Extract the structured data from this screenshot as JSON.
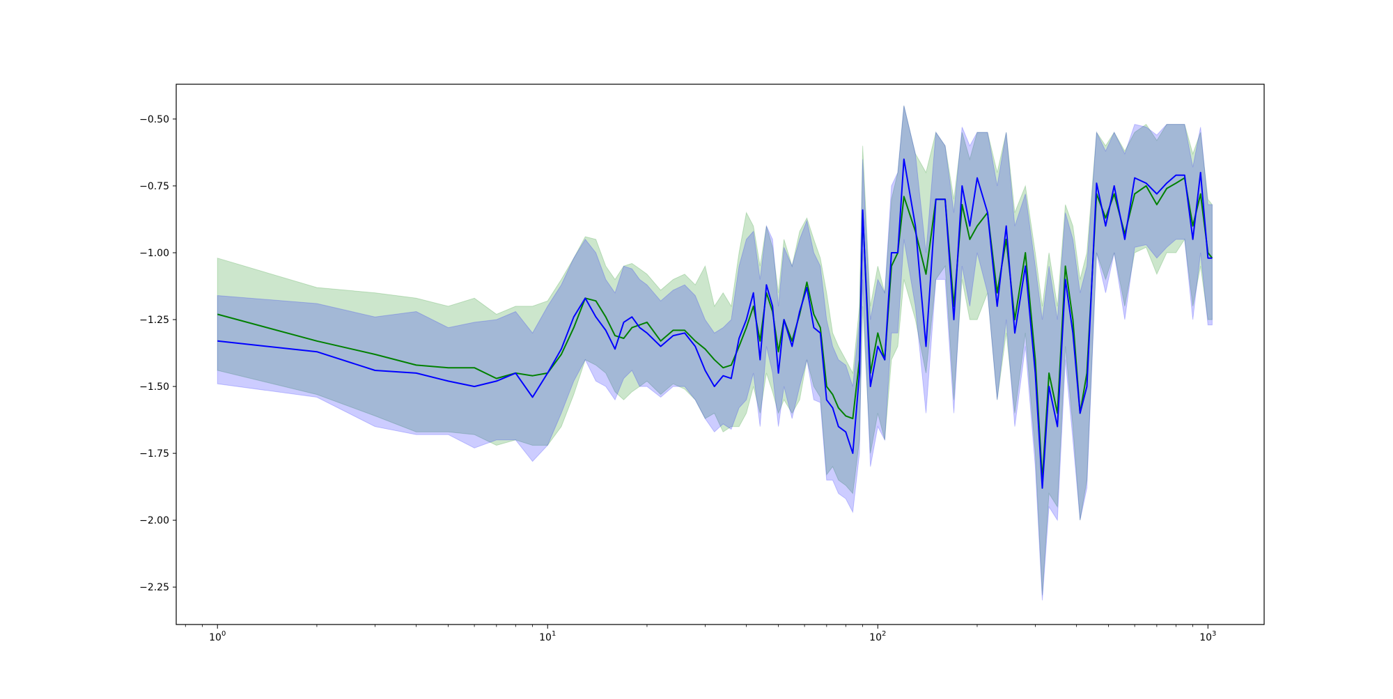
{
  "chart_data": {
    "type": "line",
    "title": "",
    "xlabel": "",
    "ylabel": "",
    "xscale": "log",
    "xlim": [
      0.75,
      1480
    ],
    "ylim": [
      -2.39,
      -0.37
    ],
    "grid": false,
    "legend": "none",
    "x_ticks": [
      {
        "value": 1,
        "base": "10",
        "exp": "0"
      },
      {
        "value": 10,
        "base": "10",
        "exp": "1"
      },
      {
        "value": 100,
        "base": "10",
        "exp": "2"
      },
      {
        "value": 1000,
        "base": "10",
        "exp": "3"
      }
    ],
    "y_ticks": [
      {
        "value": -0.5,
        "label": "−0.50"
      },
      {
        "value": -0.75,
        "label": "−0.75"
      },
      {
        "value": -1.0,
        "label": "−1.00"
      },
      {
        "value": -1.25,
        "label": "−1.25"
      },
      {
        "value": -1.5,
        "label": "−1.50"
      },
      {
        "value": -1.75,
        "label": "−1.75"
      },
      {
        "value": -2.0,
        "label": "−2.00"
      },
      {
        "value": -2.25,
        "label": "−2.25"
      }
    ],
    "series": [
      {
        "color": "#008000",
        "band_color": "#008000",
        "band_opacity": 0.2,
        "x": [
          1,
          2,
          3,
          4,
          5,
          6,
          7,
          8,
          9,
          10,
          11,
          12,
          13,
          14,
          15,
          16,
          17,
          18,
          19,
          20,
          22,
          24,
          26,
          28,
          30,
          32,
          34,
          36,
          38,
          40,
          42,
          44,
          46,
          48,
          50,
          52,
          55,
          58,
          61,
          64,
          67,
          70,
          73,
          76,
          80,
          84,
          88,
          90,
          95,
          100,
          105,
          110,
          115,
          120,
          130,
          140,
          150,
          160,
          170,
          180,
          190,
          200,
          215,
          230,
          245,
          260,
          280,
          300,
          315,
          330,
          350,
          370,
          390,
          410,
          430,
          460,
          490,
          520,
          560,
          600,
          650,
          700,
          750,
          800,
          850,
          900,
          950,
          1000,
          1030
        ],
        "y": [
          -1.23,
          -1.33,
          -1.38,
          -1.42,
          -1.43,
          -1.43,
          -1.47,
          -1.45,
          -1.46,
          -1.45,
          -1.38,
          -1.28,
          -1.17,
          -1.18,
          -1.24,
          -1.31,
          -1.32,
          -1.28,
          -1.27,
          -1.26,
          -1.33,
          -1.29,
          -1.29,
          -1.33,
          -1.36,
          -1.4,
          -1.43,
          -1.42,
          -1.35,
          -1.28,
          -1.2,
          -1.33,
          -1.15,
          -1.22,
          -1.37,
          -1.25,
          -1.33,
          -1.23,
          -1.11,
          -1.23,
          -1.28,
          -1.5,
          -1.53,
          -1.58,
          -1.61,
          -1.62,
          -1.4,
          -0.85,
          -1.45,
          -1.3,
          -1.4,
          -1.05,
          -1.0,
          -0.79,
          -0.92,
          -1.08,
          -0.8,
          -0.8,
          -1.2,
          -0.82,
          -0.95,
          -0.9,
          -0.85,
          -1.15,
          -0.95,
          -1.25,
          -1.0,
          -1.4,
          -1.85,
          -1.45,
          -1.6,
          -1.05,
          -1.25,
          -1.6,
          -1.45,
          -0.78,
          -0.87,
          -0.78,
          -0.93,
          -0.78,
          -0.75,
          -0.82,
          -0.76,
          -0.74,
          -0.72,
          -0.9,
          -0.78,
          -1.0,
          -1.02
        ],
        "upper": [
          -1.02,
          -1.13,
          -1.15,
          -1.17,
          -1.2,
          -1.17,
          -1.23,
          -1.2,
          -1.2,
          -1.18,
          -1.1,
          -1.02,
          -0.94,
          -0.95,
          -1.05,
          -1.1,
          -1.05,
          -1.04,
          -1.06,
          -1.08,
          -1.14,
          -1.1,
          -1.08,
          -1.12,
          -1.05,
          -1.2,
          -1.15,
          -1.2,
          -1.0,
          -0.85,
          -0.9,
          -1.05,
          -0.9,
          -0.98,
          -1.15,
          -0.95,
          -1.05,
          -0.92,
          -0.87,
          -0.95,
          -1.02,
          -1.15,
          -1.3,
          -1.35,
          -1.4,
          -1.45,
          -1.2,
          -0.6,
          -1.2,
          -1.05,
          -1.15,
          -0.8,
          -0.7,
          -0.45,
          -0.63,
          -0.7,
          -0.55,
          -0.6,
          -0.8,
          -0.55,
          -0.65,
          -0.55,
          -0.55,
          -0.7,
          -0.55,
          -0.85,
          -0.75,
          -1.0,
          -1.2,
          -1.0,
          -1.2,
          -0.82,
          -0.9,
          -1.1,
          -1.0,
          -0.55,
          -0.6,
          -0.55,
          -0.62,
          -0.55,
          -0.52,
          -0.58,
          -0.52,
          -0.52,
          -0.52,
          -0.63,
          -0.55,
          -0.8,
          -0.82
        ],
        "lower": [
          -1.44,
          -1.53,
          -1.61,
          -1.67,
          -1.67,
          -1.68,
          -1.72,
          -1.7,
          -1.72,
          -1.72,
          -1.65,
          -1.53,
          -1.4,
          -1.42,
          -1.45,
          -1.52,
          -1.55,
          -1.52,
          -1.5,
          -1.48,
          -1.53,
          -1.49,
          -1.51,
          -1.55,
          -1.62,
          -1.6,
          -1.67,
          -1.65,
          -1.65,
          -1.6,
          -1.5,
          -1.6,
          -1.45,
          -1.52,
          -1.6,
          -1.55,
          -1.6,
          -1.55,
          -1.4,
          -1.5,
          -1.54,
          -1.83,
          -1.8,
          -1.85,
          -1.87,
          -1.9,
          -1.7,
          -1.2,
          -1.75,
          -1.6,
          -1.7,
          -1.4,
          -1.35,
          -1.1,
          -1.25,
          -1.45,
          -1.1,
          -1.05,
          -1.55,
          -1.1,
          -1.25,
          -1.25,
          -1.15,
          -1.55,
          -1.3,
          -1.6,
          -1.3,
          -1.75,
          -2.28,
          -1.9,
          -1.95,
          -1.35,
          -1.65,
          -2.0,
          -1.85,
          -1.0,
          -1.1,
          -1.0,
          -1.2,
          -1.0,
          -0.98,
          -1.08,
          -1.0,
          -1.0,
          -0.95,
          -1.2,
          -1.05,
          -1.25,
          -1.25
        ]
      },
      {
        "color": "#0000ff",
        "band_color": "#0000ff",
        "band_opacity": 0.2,
        "x": [
          1,
          2,
          3,
          4,
          5,
          6,
          7,
          8,
          9,
          10,
          11,
          12,
          13,
          14,
          15,
          16,
          17,
          18,
          19,
          20,
          22,
          24,
          26,
          28,
          30,
          32,
          34,
          36,
          38,
          40,
          42,
          44,
          46,
          48,
          50,
          52,
          55,
          58,
          61,
          64,
          67,
          70,
          73,
          76,
          80,
          84,
          88,
          90,
          95,
          100,
          105,
          110,
          115,
          120,
          130,
          140,
          150,
          160,
          170,
          180,
          190,
          200,
          215,
          230,
          245,
          260,
          280,
          300,
          315,
          330,
          350,
          370,
          390,
          410,
          430,
          460,
          490,
          520,
          560,
          600,
          650,
          700,
          750,
          800,
          850,
          900,
          950,
          1000,
          1030
        ],
        "y": [
          -1.33,
          -1.37,
          -1.44,
          -1.45,
          -1.48,
          -1.5,
          -1.48,
          -1.45,
          -1.54,
          -1.45,
          -1.36,
          -1.24,
          -1.17,
          -1.24,
          -1.29,
          -1.36,
          -1.26,
          -1.24,
          -1.28,
          -1.3,
          -1.35,
          -1.31,
          -1.3,
          -1.35,
          -1.44,
          -1.5,
          -1.46,
          -1.47,
          -1.32,
          -1.25,
          -1.15,
          -1.4,
          -1.12,
          -1.2,
          -1.45,
          -1.25,
          -1.35,
          -1.22,
          -1.13,
          -1.28,
          -1.3,
          -1.55,
          -1.58,
          -1.65,
          -1.67,
          -1.75,
          -1.45,
          -0.84,
          -1.5,
          -1.35,
          -1.4,
          -1.0,
          -1.0,
          -0.65,
          -0.9,
          -1.35,
          -0.8,
          -0.8,
          -1.25,
          -0.75,
          -0.9,
          -0.72,
          -0.85,
          -1.2,
          -0.9,
          -1.3,
          -1.05,
          -1.45,
          -1.88,
          -1.5,
          -1.65,
          -1.1,
          -1.3,
          -1.6,
          -1.5,
          -0.74,
          -0.9,
          -0.75,
          -0.95,
          -0.72,
          -0.74,
          -0.78,
          -0.74,
          -0.71,
          -0.71,
          -0.95,
          -0.7,
          -1.02,
          -1.02
        ],
        "upper": [
          -1.16,
          -1.19,
          -1.24,
          -1.22,
          -1.28,
          -1.26,
          -1.25,
          -1.22,
          -1.3,
          -1.2,
          -1.12,
          -1.02,
          -0.95,
          -1.0,
          -1.1,
          -1.15,
          -1.05,
          -1.06,
          -1.1,
          -1.12,
          -1.18,
          -1.14,
          -1.12,
          -1.16,
          -1.25,
          -1.3,
          -1.28,
          -1.25,
          -1.05,
          -0.95,
          -0.92,
          -1.1,
          -0.9,
          -0.95,
          -1.2,
          -0.98,
          -1.05,
          -0.95,
          -0.88,
          -1.0,
          -1.05,
          -1.25,
          -1.35,
          -1.4,
          -1.42,
          -1.5,
          -1.25,
          -0.65,
          -1.25,
          -1.1,
          -1.15,
          -0.75,
          -0.7,
          -0.45,
          -0.63,
          -1.0,
          -0.55,
          -0.6,
          -0.85,
          -0.53,
          -0.6,
          -0.55,
          -0.55,
          -0.75,
          -0.55,
          -0.9,
          -0.78,
          -1.05,
          -1.25,
          -1.05,
          -1.25,
          -0.85,
          -0.95,
          -1.15,
          -1.05,
          -0.55,
          -0.62,
          -0.55,
          -0.63,
          -0.52,
          -0.53,
          -0.56,
          -0.52,
          -0.52,
          -0.52,
          -0.68,
          -0.53,
          -0.82,
          -0.82
        ],
        "lower": [
          -1.49,
          -1.54,
          -1.65,
          -1.68,
          -1.68,
          -1.73,
          -1.7,
          -1.7,
          -1.78,
          -1.72,
          -1.6,
          -1.48,
          -1.4,
          -1.48,
          -1.5,
          -1.55,
          -1.47,
          -1.44,
          -1.5,
          -1.5,
          -1.54,
          -1.5,
          -1.5,
          -1.55,
          -1.62,
          -1.67,
          -1.64,
          -1.66,
          -1.58,
          -1.55,
          -1.45,
          -1.65,
          -1.35,
          -1.45,
          -1.65,
          -1.5,
          -1.62,
          -1.5,
          -1.4,
          -1.55,
          -1.56,
          -1.85,
          -1.85,
          -1.9,
          -1.92,
          -1.97,
          -1.75,
          -1.1,
          -1.8,
          -1.65,
          -1.7,
          -1.3,
          -1.3,
          -0.95,
          -1.2,
          -1.6,
          -1.1,
          -1.1,
          -1.6,
          -1.05,
          -1.2,
          -1.0,
          -1.15,
          -1.55,
          -1.25,
          -1.65,
          -1.35,
          -1.8,
          -2.3,
          -1.95,
          -2.0,
          -1.4,
          -1.7,
          -2.0,
          -1.88,
          -1.0,
          -1.15,
          -1.0,
          -1.25,
          -0.98,
          -0.97,
          -1.02,
          -0.98,
          -0.95,
          -0.95,
          -1.25,
          -1.0,
          -1.27,
          -1.27
        ]
      }
    ]
  }
}
